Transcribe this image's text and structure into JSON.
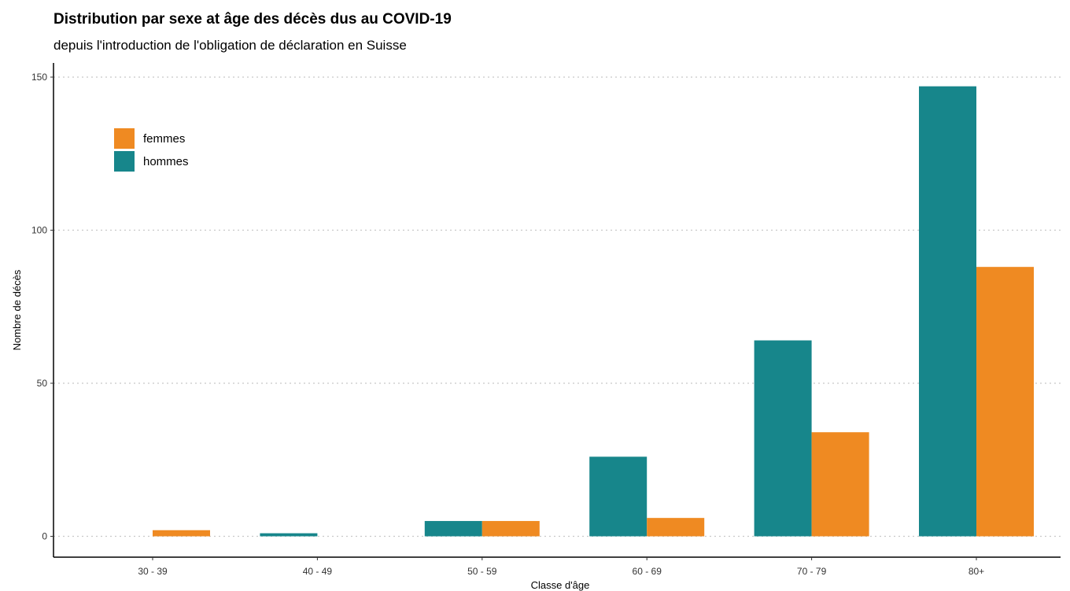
{
  "chart_data": {
    "type": "bar",
    "title": "Distribution par sexe at âge des décès dus au COVID-19",
    "subtitle": "depuis l'introduction de l'obligation de déclaration en Suisse",
    "xlabel": "Classe d'âge",
    "ylabel": "Nombre de décès",
    "categories": [
      "30 - 39",
      "40 - 49",
      "50 - 59",
      "60 - 69",
      "70 - 79",
      "80+"
    ],
    "series": [
      {
        "name": "hommes",
        "color": "#17868b",
        "values": [
          0,
          1,
          5,
          26,
          64,
          147
        ]
      },
      {
        "name": "femmes",
        "color": "#ef8a22",
        "values": [
          2,
          0,
          5,
          6,
          34,
          88
        ]
      }
    ],
    "legend_order": [
      "femmes",
      "hommes"
    ],
    "ylim": [
      0,
      155
    ],
    "yticks": [
      0,
      50,
      100,
      150
    ],
    "grid": "horizontal dotted",
    "legend_position": "top-left"
  }
}
